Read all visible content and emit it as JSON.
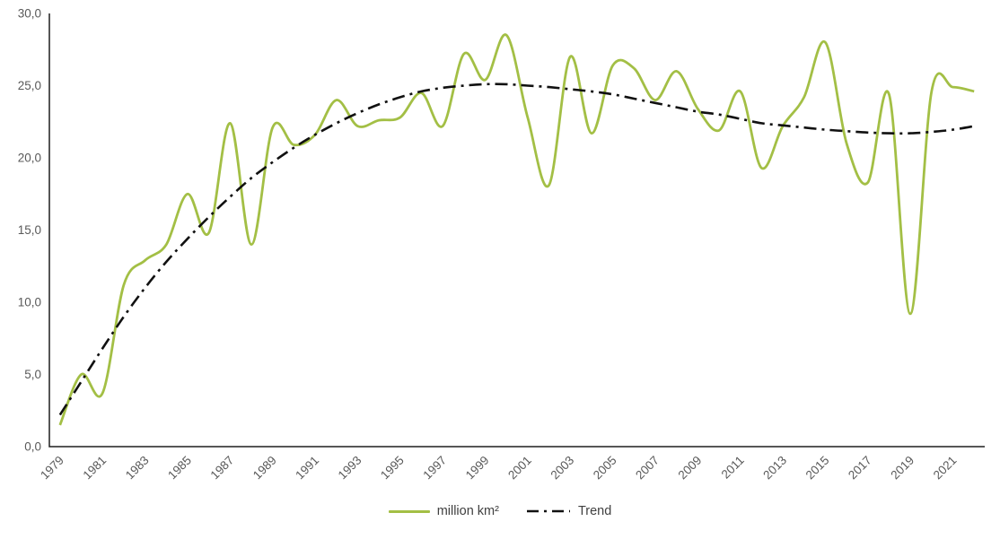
{
  "chart_data": {
    "type": "line",
    "title": "",
    "xlabel": "",
    "ylabel": "",
    "grid": false,
    "legend_position": "bottom-center",
    "ylim": [
      0,
      30
    ],
    "y_tick_step": 5,
    "y_tick_labels": [
      "0,0",
      "5,0",
      "10,0",
      "15,0",
      "20,0",
      "25,0",
      "30,0"
    ],
    "x_years": [
      1979,
      1980,
      1981,
      1982,
      1983,
      1984,
      1985,
      1986,
      1987,
      1988,
      1989,
      1990,
      1991,
      1992,
      1993,
      1994,
      1995,
      1996,
      1997,
      1998,
      1999,
      2000,
      2001,
      2002,
      2003,
      2004,
      2005,
      2006,
      2007,
      2008,
      2009,
      2010,
      2011,
      2012,
      2013,
      2014,
      2015,
      2016,
      2017,
      2018,
      2019,
      2020,
      2021,
      2022
    ],
    "x_tick_labels": [
      "1979",
      "1981",
      "1983",
      "1985",
      "1987",
      "1989",
      "1991",
      "1993",
      "1995",
      "1997",
      "1999",
      "2001",
      "2003",
      "2005",
      "2007",
      "2009",
      "2011",
      "2013",
      "2015",
      "2017",
      "2019",
      "2021"
    ],
    "series": [
      {
        "name": "million km²",
        "color": "#a3bf45",
        "style": "solid",
        "values": [
          1.5,
          5.0,
          3.7,
          11.2,
          12.9,
          14.0,
          17.5,
          14.8,
          22.4,
          14.0,
          22.1,
          20.9,
          21.6,
          24.0,
          22.2,
          22.6,
          22.8,
          24.5,
          22.2,
          27.2,
          25.4,
          28.5,
          22.8,
          18.1,
          27.0,
          21.7,
          26.4,
          26.2,
          24.0,
          26.0,
          23.4,
          21.9,
          24.6,
          19.3,
          22.2,
          24.2,
          28.0,
          21.0,
          18.3,
          24.4,
          9.2,
          24.6,
          24.9,
          24.6
        ]
      },
      {
        "name": "Trend",
        "color": "#111111",
        "style": "dash-dot",
        "values": [
          2.2,
          4.5,
          6.8,
          9.0,
          11.0,
          12.8,
          14.4,
          15.9,
          17.3,
          18.6,
          19.7,
          20.7,
          21.6,
          22.4,
          23.1,
          23.7,
          24.2,
          24.6,
          24.85,
          25.0,
          25.1,
          25.1,
          25.0,
          24.9,
          24.75,
          24.6,
          24.4,
          24.1,
          23.8,
          23.5,
          23.2,
          23.0,
          22.7,
          22.4,
          22.25,
          22.1,
          21.95,
          21.85,
          21.75,
          21.7,
          21.7,
          21.8,
          21.95,
          22.2
        ]
      }
    ],
    "axis_color": "#1f1f1f",
    "tick_label_color": "#595959",
    "legend_text_color": "#404040"
  }
}
